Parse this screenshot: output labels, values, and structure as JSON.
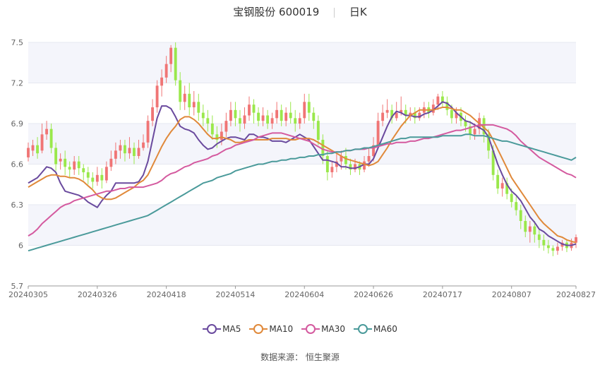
{
  "title": {
    "name": "宝钢股份 600019",
    "period": "日K"
  },
  "source": {
    "label": "数据来源：",
    "value": "恒生聚源"
  },
  "chart_data": {
    "type": "candlestick",
    "ylim": [
      5.7,
      7.5
    ],
    "y_ticks": [
      5.7,
      6,
      6.3,
      6.6,
      6.9,
      7.2,
      7.5
    ],
    "y_tick_labels": [
      "5.7",
      "6",
      "6.3",
      "6.6",
      "6.9",
      "7.2",
      "7.5"
    ],
    "x_ticks": [
      {
        "label": "20240305",
        "index": 0
      },
      {
        "label": "20240326",
        "index": 15
      },
      {
        "label": "20240418",
        "index": 30
      },
      {
        "label": "20240514",
        "index": 45
      },
      {
        "label": "20240604",
        "index": 60
      },
      {
        "label": "20240626",
        "index": 75
      },
      {
        "label": "20240717",
        "index": 90
      },
      {
        "label": "20240807",
        "index": 105
      },
      {
        "label": "20240827",
        "index": 119
      }
    ],
    "up_color": "#F07575",
    "down_color": "#9AE84B",
    "candles": [
      [
        6.65,
        6.72,
        6.76,
        6.62
      ],
      [
        6.7,
        6.74,
        6.78,
        6.66
      ],
      [
        6.74,
        6.68,
        6.8,
        6.64
      ],
      [
        6.7,
        6.82,
        6.9,
        6.68
      ],
      [
        6.82,
        6.86,
        6.92,
        6.78
      ],
      [
        6.86,
        6.72,
        6.9,
        6.68
      ],
      [
        6.72,
        6.6,
        6.76,
        6.55
      ],
      [
        6.62,
        6.64,
        6.68,
        6.56
      ],
      [
        6.64,
        6.58,
        6.7,
        6.52
      ],
      [
        6.58,
        6.56,
        6.62,
        6.5
      ],
      [
        6.56,
        6.62,
        6.66,
        6.52
      ],
      [
        6.62,
        6.57,
        6.66,
        6.52
      ],
      [
        6.57,
        6.54,
        6.6,
        6.48
      ],
      [
        6.54,
        6.5,
        6.58,
        6.45
      ],
      [
        6.5,
        6.47,
        6.54,
        6.42
      ],
      [
        6.47,
        6.52,
        6.58,
        6.44
      ],
      [
        6.52,
        6.48,
        6.57,
        6.42
      ],
      [
        6.48,
        6.58,
        6.62,
        6.46
      ],
      [
        6.58,
        6.64,
        6.7,
        6.55
      ],
      [
        6.64,
        6.7,
        6.76,
        6.6
      ],
      [
        6.7,
        6.74,
        6.78,
        6.64
      ],
      [
        6.74,
        6.68,
        6.78,
        6.62
      ],
      [
        6.68,
        6.72,
        6.8,
        6.64
      ],
      [
        6.72,
        6.66,
        6.76,
        6.6
      ],
      [
        6.66,
        6.72,
        6.78,
        6.64
      ],
      [
        6.72,
        6.76,
        6.82,
        6.7
      ],
      [
        6.76,
        6.92,
        6.96,
        6.72
      ],
      [
        6.92,
        7.02,
        7.08,
        6.88
      ],
      [
        7.02,
        7.18,
        7.22,
        6.98
      ],
      [
        7.18,
        7.24,
        7.3,
        7.1
      ],
      [
        7.24,
        7.34,
        7.4,
        7.2
      ],
      [
        7.34,
        7.46,
        7.48,
        7.28
      ],
      [
        7.46,
        7.22,
        7.5,
        7.18
      ],
      [
        7.22,
        7.06,
        7.28,
        7.0
      ],
      [
        7.06,
        7.12,
        7.18,
        7.0
      ],
      [
        7.12,
        7.02,
        7.2,
        6.96
      ],
      [
        7.02,
        7.06,
        7.14,
        6.96
      ],
      [
        7.06,
        6.98,
        7.12,
        6.92
      ],
      [
        6.98,
        6.94,
        7.04,
        6.88
      ],
      [
        6.94,
        6.9,
        7.0,
        6.84
      ],
      [
        6.9,
        6.82,
        6.96,
        6.78
      ],
      [
        6.82,
        6.78,
        6.88,
        6.72
      ],
      [
        6.78,
        6.84,
        6.9,
        6.74
      ],
      [
        6.84,
        6.92,
        6.98,
        6.8
      ],
      [
        6.92,
        7.0,
        7.06,
        6.88
      ],
      [
        7.0,
        6.94,
        7.06,
        6.88
      ],
      [
        6.94,
        6.9,
        7.0,
        6.84
      ],
      [
        6.9,
        6.96,
        7.02,
        6.86
      ],
      [
        6.96,
        7.04,
        7.1,
        6.92
      ],
      [
        7.04,
        6.98,
        7.08,
        6.9
      ],
      [
        6.98,
        6.92,
        7.02,
        6.88
      ],
      [
        6.92,
        6.96,
        7.02,
        6.88
      ],
      [
        6.96,
        6.9,
        7.0,
        6.86
      ],
      [
        6.9,
        6.94,
        6.98,
        6.86
      ],
      [
        6.94,
        7.0,
        7.06,
        6.9
      ],
      [
        7.0,
        6.92,
        7.04,
        6.88
      ],
      [
        6.92,
        6.98,
        7.02,
        6.88
      ],
      [
        6.98,
        6.94,
        7.06,
        6.9
      ],
      [
        6.94,
        6.9,
        7.0,
        6.84
      ],
      [
        6.9,
        6.94,
        6.98,
        6.86
      ],
      [
        6.94,
        7.06,
        7.12,
        6.9
      ],
      [
        7.06,
        6.98,
        7.12,
        6.92
      ],
      [
        6.98,
        6.92,
        7.02,
        6.86
      ],
      [
        6.92,
        6.78,
        6.96,
        6.74
      ],
      [
        6.78,
        6.66,
        6.82,
        6.6
      ],
      [
        6.66,
        6.54,
        6.7,
        6.48
      ],
      [
        6.54,
        6.58,
        6.62,
        6.5
      ],
      [
        6.58,
        6.62,
        6.68,
        6.54
      ],
      [
        6.62,
        6.66,
        6.7,
        6.56
      ],
      [
        6.66,
        6.6,
        6.72,
        6.56
      ],
      [
        6.6,
        6.56,
        6.64,
        6.52
      ],
      [
        6.56,
        6.6,
        6.64,
        6.54
      ],
      [
        6.6,
        6.56,
        6.62,
        6.52
      ],
      [
        6.56,
        6.62,
        6.66,
        6.54
      ],
      [
        6.62,
        6.66,
        6.72,
        6.58
      ],
      [
        6.66,
        6.74,
        6.8,
        6.62
      ],
      [
        6.74,
        6.92,
        6.98,
        6.72
      ],
      [
        6.92,
        6.98,
        7.04,
        6.88
      ],
      [
        6.98,
        7.0,
        7.08,
        6.94
      ],
      [
        7.0,
        6.94,
        7.04,
        6.9
      ],
      [
        6.94,
        6.98,
        7.06,
        6.92
      ],
      [
        6.98,
        7.0,
        7.1,
        6.96
      ],
      [
        7.0,
        6.96,
        7.04,
        6.9
      ],
      [
        6.96,
        6.98,
        7.02,
        6.92
      ],
      [
        6.98,
        6.94,
        7.02,
        6.9
      ],
      [
        6.94,
        6.98,
        7.02,
        6.92
      ],
      [
        6.98,
        7.02,
        7.06,
        6.94
      ],
      [
        7.02,
        6.98,
        7.06,
        6.94
      ],
      [
        6.98,
        7.04,
        7.08,
        6.96
      ],
      [
        7.04,
        7.1,
        7.12,
        7.0
      ],
      [
        7.1,
        7.06,
        7.14,
        7.02
      ],
      [
        7.06,
        7.0,
        7.1,
        6.96
      ],
      [
        7.0,
        6.94,
        7.04,
        6.9
      ],
      [
        6.94,
        6.98,
        7.02,
        6.9
      ],
      [
        6.98,
        6.92,
        7.02,
        6.88
      ],
      [
        6.92,
        6.88,
        6.96,
        6.84
      ],
      [
        6.88,
        6.82,
        6.92,
        6.78
      ],
      [
        6.82,
        6.86,
        6.9,
        6.78
      ],
      [
        6.86,
        6.94,
        6.98,
        6.82
      ],
      [
        6.94,
        6.82,
        6.96,
        6.76
      ],
      [
        6.82,
        6.7,
        6.86,
        6.64
      ],
      [
        6.7,
        6.52,
        6.74,
        6.48
      ],
      [
        6.52,
        6.42,
        6.56,
        6.38
      ],
      [
        6.42,
        6.46,
        6.5,
        6.36
      ],
      [
        6.46,
        6.38,
        6.5,
        6.34
      ],
      [
        6.38,
        6.32,
        6.42,
        6.28
      ],
      [
        6.32,
        6.26,
        6.36,
        6.22
      ],
      [
        6.26,
        6.18,
        6.3,
        6.12
      ],
      [
        6.18,
        6.1,
        6.22,
        6.06
      ],
      [
        6.1,
        6.14,
        6.18,
        6.02
      ],
      [
        6.14,
        6.08,
        6.18,
        6.02
      ],
      [
        6.08,
        6.04,
        6.12,
        5.98
      ],
      [
        6.04,
        6.0,
        6.08,
        5.96
      ],
      [
        6.0,
        5.98,
        6.04,
        5.94
      ],
      [
        5.98,
        5.96,
        6.0,
        5.92
      ],
      [
        5.96,
        5.99,
        6.02,
        5.93
      ],
      [
        5.99,
        6.02,
        6.04,
        5.96
      ],
      [
        6.02,
        5.98,
        6.04,
        5.95
      ],
      [
        5.98,
        6.02,
        6.05,
        5.96
      ],
      [
        6.02,
        6.06,
        6.08,
        5.98
      ]
    ],
    "series": [
      {
        "name": "MA5",
        "color": "#6A4A9E",
        "values": [
          6.46,
          6.48,
          6.5,
          6.54,
          6.58,
          6.57,
          6.54,
          6.46,
          6.4,
          6.39,
          6.38,
          6.37,
          6.35,
          6.32,
          6.3,
          6.28,
          6.33,
          6.37,
          6.4,
          6.46,
          6.46,
          6.46,
          6.46,
          6.46,
          6.47,
          6.52,
          6.62,
          6.78,
          6.94,
          7.03,
          7.03,
          7.01,
          6.95,
          6.88,
          6.86,
          6.85,
          6.83,
          6.78,
          6.74,
          6.71,
          6.72,
          6.75,
          6.77,
          6.79,
          6.8,
          6.8,
          6.79,
          6.78,
          6.82,
          6.82,
          6.8,
          6.8,
          6.79,
          6.77,
          6.77,
          6.77,
          6.76,
          6.78,
          6.8,
          6.82,
          6.8,
          6.78,
          6.73,
          6.68,
          6.63,
          6.63,
          6.62,
          6.61,
          6.58,
          6.58,
          6.57,
          6.57,
          6.58,
          6.6,
          6.6,
          6.64,
          6.72,
          6.8,
          6.88,
          6.95,
          6.99,
          6.98,
          6.96,
          6.96,
          6.95,
          6.95,
          6.97,
          6.98,
          7.0,
          7.03,
          7.06,
          7.05,
          7.02,
          6.98,
          6.95,
          6.92,
          6.91,
          6.89,
          6.87,
          6.85,
          6.8,
          6.7,
          6.6,
          6.52,
          6.45,
          6.4,
          6.37,
          6.33,
          6.27,
          6.21,
          6.17,
          6.12,
          6.1,
          6.07,
          6.05,
          6.03,
          6.01,
          6.0,
          6.0,
          6.01
        ]
      },
      {
        "name": "MA10",
        "color": "#E0893A",
        "values": [
          6.43,
          6.45,
          6.47,
          6.49,
          6.51,
          6.52,
          6.52,
          6.51,
          6.51,
          6.5,
          6.5,
          6.49,
          6.47,
          6.44,
          6.41,
          6.37,
          6.35,
          6.34,
          6.34,
          6.35,
          6.37,
          6.39,
          6.41,
          6.43,
          6.46,
          6.48,
          6.52,
          6.59,
          6.66,
          6.73,
          6.79,
          6.84,
          6.88,
          6.93,
          6.95,
          6.95,
          6.93,
          6.9,
          6.86,
          6.82,
          6.79,
          6.79,
          6.8,
          6.79,
          6.78,
          6.76,
          6.76,
          6.77,
          6.78,
          6.78,
          6.78,
          6.78,
          6.78,
          6.79,
          6.79,
          6.79,
          6.79,
          6.78,
          6.78,
          6.79,
          6.79,
          6.79,
          6.78,
          6.76,
          6.74,
          6.72,
          6.7,
          6.68,
          6.66,
          6.64,
          6.63,
          6.62,
          6.61,
          6.6,
          6.59,
          6.6,
          6.62,
          6.67,
          6.72,
          6.78,
          6.83,
          6.88,
          6.92,
          6.96,
          6.98,
          7.0,
          7.0,
          7.0,
          7.0,
          7.01,
          7.02,
          7.02,
          7.01,
          7.0,
          7.0,
          6.98,
          6.96,
          6.93,
          6.9,
          6.87,
          6.84,
          6.78,
          6.71,
          6.64,
          6.57,
          6.5,
          6.45,
          6.4,
          6.35,
          6.3,
          6.25,
          6.2,
          6.16,
          6.13,
          6.1,
          6.07,
          6.06,
          6.04,
          6.03,
          6.02
        ]
      },
      {
        "name": "MA30",
        "color": "#D45A9F",
        "values": [
          6.07,
          6.09,
          6.12,
          6.16,
          6.19,
          6.22,
          6.25,
          6.28,
          6.3,
          6.31,
          6.33,
          6.34,
          6.35,
          6.36,
          6.37,
          6.38,
          6.39,
          6.4,
          6.4,
          6.41,
          6.42,
          6.42,
          6.43,
          6.43,
          6.43,
          6.43,
          6.44,
          6.45,
          6.46,
          6.48,
          6.51,
          6.53,
          6.54,
          6.56,
          6.58,
          6.59,
          6.61,
          6.62,
          6.63,
          6.64,
          6.66,
          6.67,
          6.69,
          6.71,
          6.72,
          6.74,
          6.75,
          6.76,
          6.77,
          6.78,
          6.8,
          6.81,
          6.82,
          6.83,
          6.83,
          6.83,
          6.82,
          6.81,
          6.8,
          6.79,
          6.78,
          6.77,
          6.75,
          6.73,
          6.71,
          6.7,
          6.69,
          6.69,
          6.69,
          6.7,
          6.7,
          6.71,
          6.71,
          6.71,
          6.72,
          6.72,
          6.73,
          6.74,
          6.75,
          6.75,
          6.76,
          6.76,
          6.76,
          6.77,
          6.77,
          6.78,
          6.79,
          6.79,
          6.8,
          6.81,
          6.82,
          6.83,
          6.84,
          6.85,
          6.85,
          6.86,
          6.87,
          6.88,
          6.89,
          6.89,
          6.89,
          6.89,
          6.88,
          6.87,
          6.86,
          6.84,
          6.81,
          6.77,
          6.74,
          6.71,
          6.68,
          6.65,
          6.63,
          6.61,
          6.59,
          6.57,
          6.55,
          6.53,
          6.52,
          6.5
        ]
      },
      {
        "name": "MA60",
        "color": "#4A9A9A",
        "values": [
          5.96,
          5.97,
          5.98,
          5.99,
          6.0,
          6.01,
          6.02,
          6.03,
          6.04,
          6.05,
          6.06,
          6.07,
          6.08,
          6.09,
          6.1,
          6.11,
          6.12,
          6.13,
          6.14,
          6.15,
          6.16,
          6.17,
          6.18,
          6.19,
          6.2,
          6.21,
          6.22,
          6.24,
          6.26,
          6.28,
          6.3,
          6.32,
          6.34,
          6.36,
          6.38,
          6.4,
          6.42,
          6.44,
          6.46,
          6.47,
          6.48,
          6.5,
          6.51,
          6.52,
          6.53,
          6.55,
          6.56,
          6.57,
          6.58,
          6.59,
          6.6,
          6.6,
          6.61,
          6.62,
          6.62,
          6.63,
          6.63,
          6.64,
          6.64,
          6.65,
          6.65,
          6.66,
          6.66,
          6.67,
          6.67,
          6.68,
          6.68,
          6.69,
          6.69,
          6.7,
          6.7,
          6.71,
          6.71,
          6.72,
          6.72,
          6.73,
          6.74,
          6.75,
          6.76,
          6.77,
          6.78,
          6.79,
          6.79,
          6.8,
          6.8,
          6.8,
          6.8,
          6.8,
          6.8,
          6.8,
          6.81,
          6.81,
          6.81,
          6.81,
          6.81,
          6.82,
          6.82,
          6.81,
          6.81,
          6.81,
          6.8,
          6.79,
          6.78,
          6.77,
          6.77,
          6.76,
          6.75,
          6.74,
          6.73,
          6.72,
          6.71,
          6.7,
          6.69,
          6.68,
          6.67,
          6.66,
          6.65,
          6.64,
          6.63,
          6.65
        ]
      }
    ],
    "grid": true,
    "legend_position": "bottom"
  }
}
